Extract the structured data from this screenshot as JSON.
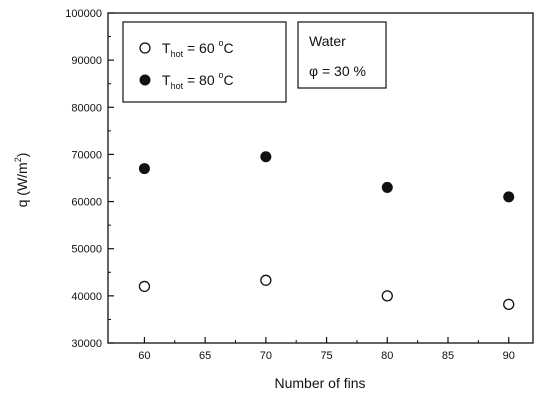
{
  "chart_data": {
    "type": "scatter",
    "xlabel": "Number of fins",
    "ylabel": {
      "base": "q (W/m",
      "sup": "2",
      "close": ")"
    },
    "xlim": [
      57,
      92
    ],
    "ylim": [
      30000,
      100000
    ],
    "xticks": [
      "60",
      "65",
      "70",
      "75",
      "80",
      "85",
      "90"
    ],
    "yticks": [
      "30000",
      "40000",
      "50000",
      "60000",
      "70000",
      "80000",
      "90000",
      "100000"
    ],
    "x": [
      60,
      70,
      80,
      90
    ],
    "series": [
      {
        "legend": {
          "t": "T",
          "sub": "hot",
          "eq": " = 60 ",
          "deg": "o",
          "unit": "C"
        },
        "marker": "open-circle",
        "values": [
          42000,
          43300,
          40000,
          38200
        ]
      },
      {
        "legend": {
          "t": "T",
          "sub": "hot",
          "eq": " = 80 ",
          "deg": "o",
          "unit": "C"
        },
        "marker": "filled-circle",
        "values": [
          67000,
          69500,
          63000,
          61000
        ]
      }
    ],
    "annotation": {
      "line1": "Water",
      "line2": "φ = 30 %"
    },
    "legend_position": "top-left",
    "grid": false
  }
}
